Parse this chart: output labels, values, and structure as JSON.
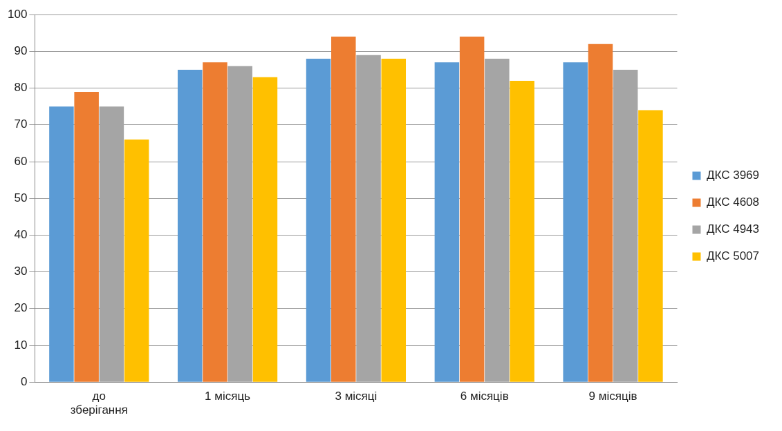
{
  "chart_data": {
    "type": "bar",
    "categories": [
      "до\nзберігання",
      "1 місяць",
      "3 місяці",
      "6 місяців",
      "9 місяців"
    ],
    "series": [
      {
        "name": "ДКС 3969",
        "color": "#5b9bd5",
        "values": [
          75,
          85,
          88,
          87,
          87
        ]
      },
      {
        "name": "ДКС 4608",
        "color": "#ed7d31",
        "values": [
          79,
          87,
          94,
          94,
          92
        ]
      },
      {
        "name": "ДКС 4943",
        "color": "#a5a5a5",
        "values": [
          75,
          86,
          89,
          88,
          85
        ]
      },
      {
        "name": "ДКС 5007",
        "color": "#ffc000",
        "values": [
          66,
          83,
          88,
          82,
          74
        ]
      }
    ],
    "ylim": [
      0,
      100
    ],
    "yticks": [
      0,
      10,
      20,
      30,
      40,
      50,
      60,
      70,
      80,
      90,
      100
    ],
    "grid": "y",
    "legend": "right"
  }
}
